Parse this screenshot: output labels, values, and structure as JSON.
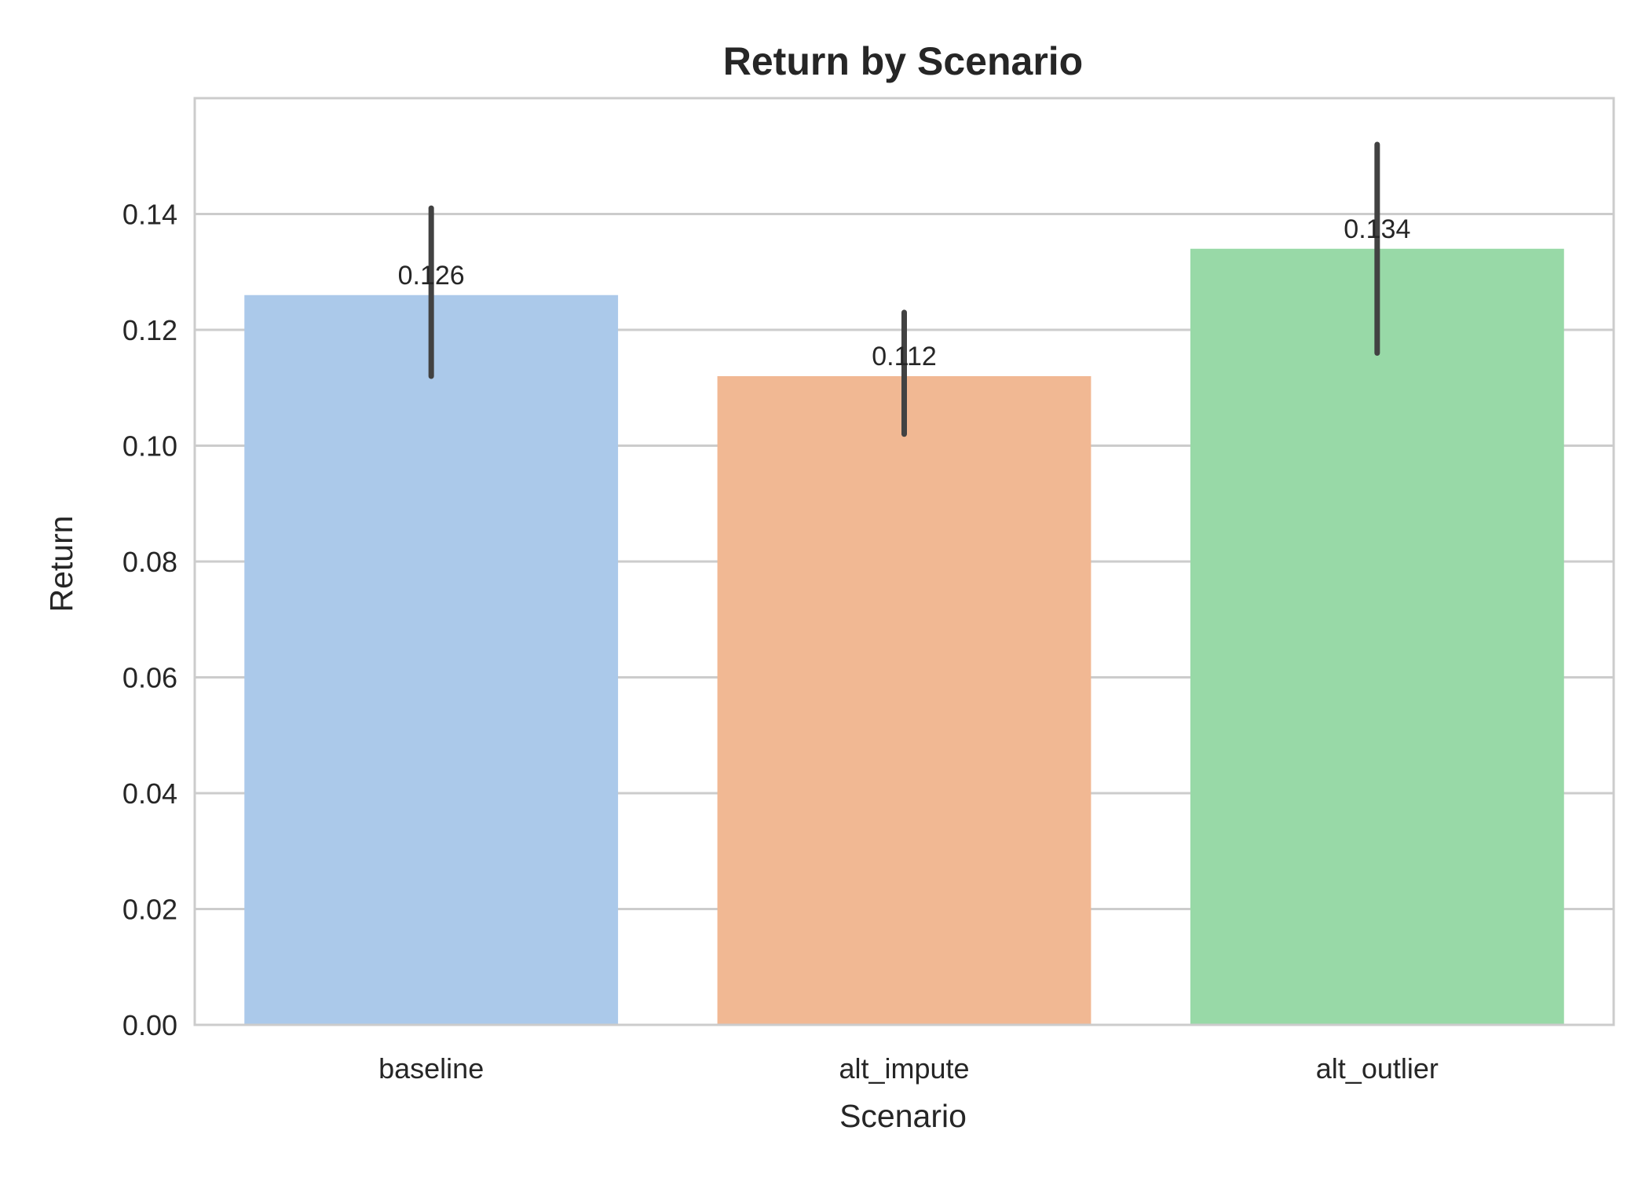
{
  "chart_data": {
    "type": "bar",
    "title": "Return by Scenario",
    "xlabel": "Scenario",
    "ylabel": "Return",
    "categories": [
      "baseline",
      "alt_impute",
      "alt_outlier"
    ],
    "values": [
      0.126,
      0.112,
      0.134
    ],
    "value_labels": [
      "0.126",
      "0.112",
      "0.134"
    ],
    "error_bars": [
      [
        0.112,
        0.141
      ],
      [
        0.102,
        0.123
      ],
      [
        0.116,
        0.152
      ]
    ],
    "ylim": [
      0,
      0.16
    ],
    "yticks": [
      0.0,
      0.02,
      0.04,
      0.06,
      0.08,
      0.1,
      0.12,
      0.14
    ],
    "ytick_labels": [
      "0.00",
      "0.02",
      "0.04",
      "0.06",
      "0.08",
      "0.10",
      "0.12",
      "0.14"
    ],
    "grid": "y",
    "legend": "none",
    "colors": [
      "#abc9ea",
      "#f1b893",
      "#98d9a7"
    ],
    "error_bar_color": "#424242",
    "grid_color": "#cccccc",
    "frame_color": "#cccccc"
  }
}
